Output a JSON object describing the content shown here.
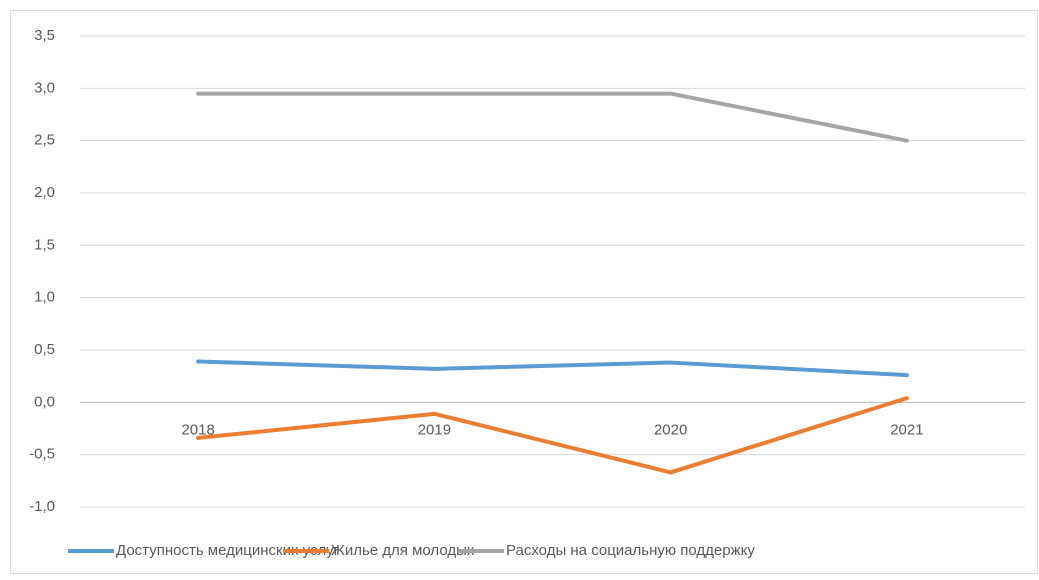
{
  "chart_data": {
    "type": "line",
    "categories": [
      "2018",
      "2019",
      "2020",
      "2021"
    ],
    "series": [
      {
        "name": "Доступность медицинских услуг",
        "color": "#5b9bd5",
        "values": [
          0.39,
          0.32,
          0.38,
          0.26
        ]
      },
      {
        "name": "Жилье для молодых",
        "color": "#ed7d31",
        "values": [
          -0.34,
          -0.11,
          -0.67,
          0.04
        ]
      },
      {
        "name": "Расходы на социальную поддержку",
        "color": "#a5a5a5",
        "values": [
          2.95,
          2.95,
          2.95,
          2.5
        ]
      }
    ],
    "ylim": [
      -1,
      3.5
    ],
    "yticks": [
      {
        "value": -1,
        "label": "-1,0"
      },
      {
        "value": -0.5,
        "label": "-0,5"
      },
      {
        "value": 0,
        "label": "0,0"
      },
      {
        "value": 0.5,
        "label": "0,5"
      },
      {
        "value": 1,
        "label": "1,0"
      },
      {
        "value": 1.5,
        "label": "1,5"
      },
      {
        "value": 2,
        "label": "2,0"
      },
      {
        "value": 2.5,
        "label": "2,5"
      },
      {
        "value": 3,
        "label": "3,0"
      },
      {
        "value": 3.5,
        "label": "3,5"
      }
    ],
    "grid": true,
    "legend": "bottom"
  }
}
